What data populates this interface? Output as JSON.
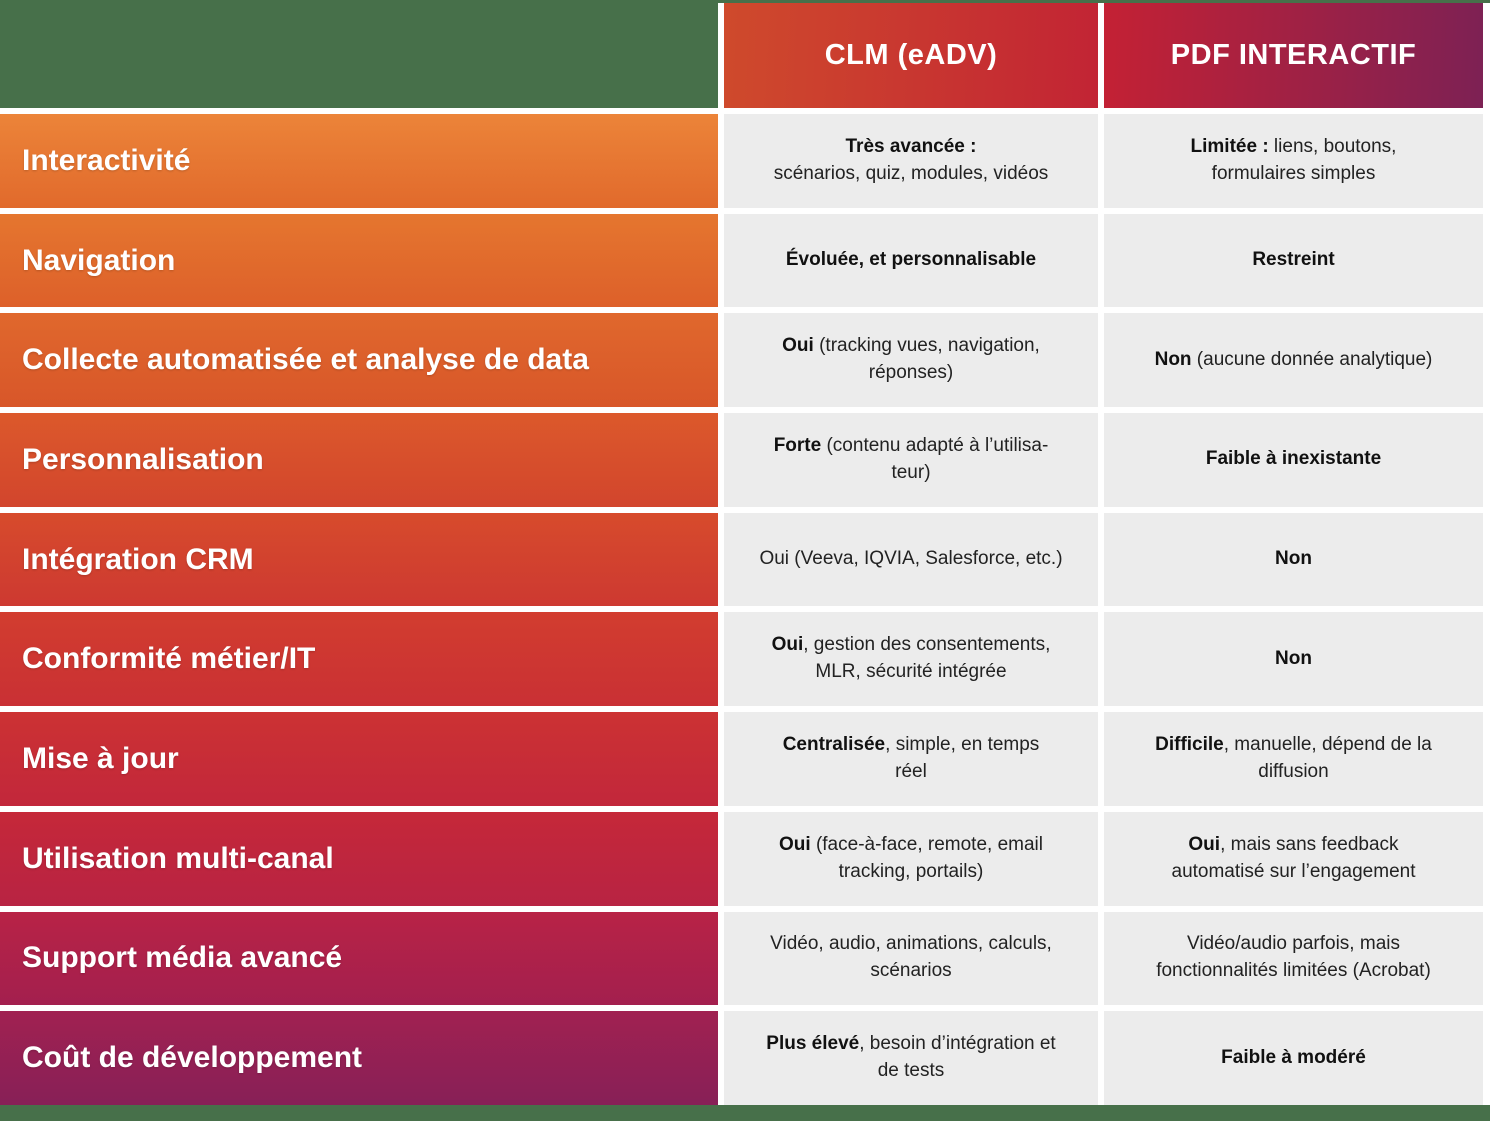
{
  "colors": {
    "green_band": "#47704a",
    "cell_background": "#ececec",
    "gap_white": "#ffffff",
    "clm_header_gradient": [
      "#cf4a2c",
      "#c22434"
    ],
    "pdf_header_gradient": [
      "#c42134",
      "#7d2154"
    ],
    "row_label_text": "#ffffff",
    "cell_text": "#222222",
    "row_gradients": [
      [
        "#ec8439",
        "#e16a2c"
      ],
      [
        "#e5762f",
        "#dd602a"
      ],
      [
        "#e0682d",
        "#d85629"
      ],
      [
        "#dc592b",
        "#d2452d"
      ],
      [
        "#d74b2c",
        "#cd3931"
      ],
      [
        "#d23d2f",
        "#c93034"
      ],
      [
        "#cc3233",
        "#c2273b"
      ],
      [
        "#c52839",
        "#b82343"
      ],
      [
        "#b82346",
        "#a31f4e"
      ],
      [
        "#a12151",
        "#872057"
      ]
    ]
  },
  "header": {
    "clm_label": "CLM (eADV)",
    "pdf_label": "PDF INTERACTIF"
  },
  "rows": [
    {
      "label": "Interactivité",
      "clm_bold": "Très avancée :",
      "clm_rest": "\nscénarios, quiz, modules, vidéos",
      "pdf_bold": "Limitée :",
      "pdf_rest": " liens, boutons,\nformulaires simples"
    },
    {
      "label": "Navigation",
      "clm_bold": "Évoluée, et personnalisable",
      "clm_rest": "",
      "pdf_bold": "Restreint",
      "pdf_rest": ""
    },
    {
      "label": "Collecte automatisée et analyse de data",
      "clm_bold": "Oui",
      "clm_rest": " (tracking vues, navigation,\nréponses)",
      "pdf_bold": "Non",
      "pdf_rest": " (aucune donnée analytique)"
    },
    {
      "label": "Personnalisation",
      "clm_bold": "Forte",
      "clm_rest": " (contenu adapté à l’utilisa-\nteur)",
      "pdf_bold": "Faible à inexistante",
      "pdf_rest": ""
    },
    {
      "label": "Intégration CRM",
      "clm_bold": "",
      "clm_rest": "Oui (Veeva, IQVIA, Salesforce, etc.)",
      "pdf_bold": "Non",
      "pdf_rest": ""
    },
    {
      "label": "Conformité métier/IT",
      "clm_bold": "Oui",
      "clm_rest": ", gestion des consentements,\nMLR, sécurité intégrée",
      "pdf_bold": "Non",
      "pdf_rest": ""
    },
    {
      "label": "Mise à jour",
      "clm_bold": "Centralisée",
      "clm_rest": ", simple, en temps\nréel",
      "pdf_bold": "Difficile",
      "pdf_rest": ", manuelle, dépend de la\ndiffusion"
    },
    {
      "label": "Utilisation multi-canal",
      "clm_bold": "Oui",
      "clm_rest": " (face-à-face, remote, email\ntracking, portails)",
      "pdf_bold": "Oui",
      "pdf_rest": ", mais sans feedback\nautomatisé sur l’engagement"
    },
    {
      "label": "Support média avancé",
      "clm_bold": "",
      "clm_rest": "Vidéo, audio, animations, calculs,\nscénarios",
      "pdf_bold": "",
      "pdf_rest": "Vidéo/audio parfois, mais\nfonctionnalités limitées (Acrobat)"
    },
    {
      "label": "Coût de développement",
      "clm_bold": "Plus élevé",
      "clm_rest": ", besoin d’intégration et\nde tests",
      "pdf_bold": "Faible à modéré",
      "pdf_rest": ""
    }
  ],
  "chart_data": {
    "type": "table",
    "title": "",
    "columns": [
      "",
      "CLM (eADV)",
      "PDF INTERACTIF"
    ],
    "rows": [
      [
        "Interactivité",
        "Très avancée : scénarios, quiz, modules, vidéos",
        "Limitée : liens, boutons, formulaires simples"
      ],
      [
        "Navigation",
        "Évoluée, et personnalisable",
        "Restreint"
      ],
      [
        "Collecte automatisée et analyse de data",
        "Oui (tracking vues, navigation, réponses)",
        "Non (aucune donnée analytique)"
      ],
      [
        "Personnalisation",
        "Forte (contenu adapté à l’utilisateur)",
        "Faible à inexistante"
      ],
      [
        "Intégration CRM",
        "Oui (Veeva, IQVIA, Salesforce, etc.)",
        "Non"
      ],
      [
        "Conformité métier/IT",
        "Oui, gestion des consentements, MLR, sécurité intégrée",
        "Non"
      ],
      [
        "Mise à jour",
        "Centralisée, simple, en temps réel",
        "Difficile, manuelle, dépend de la diffusion"
      ],
      [
        "Utilisation multi-canal",
        "Oui (face-à-face, remote, email tracking, portails)",
        "Oui, mais sans feedback automatisé sur l’engagement"
      ],
      [
        "Support média avancé",
        "Vidéo, audio, animations, calculs, scénarios",
        "Vidéo/audio parfois, mais fonctionnalités limitées (Acrobat)"
      ],
      [
        "Coût de développement",
        "Plus élevé, besoin d’intégration et de tests",
        "Faible à modéré"
      ]
    ]
  }
}
